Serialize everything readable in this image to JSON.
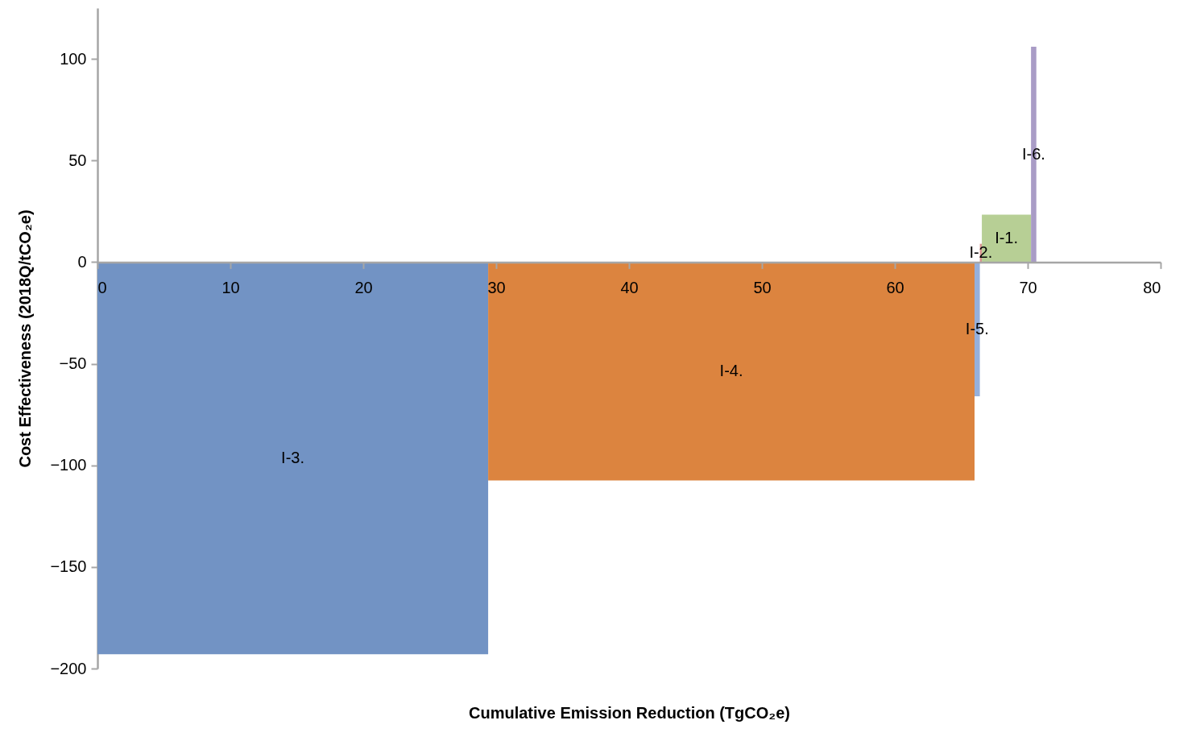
{
  "chart_data": {
    "type": "area",
    "xlabel": "Cumulative Emission Reduction (TgCO₂e)",
    "ylabel": "Cost Effectiveness (2018Q/tCO₂e)",
    "xlim": [
      0,
      80
    ],
    "xticks": [
      0,
      10,
      20,
      30,
      40,
      50,
      60,
      70,
      80
    ],
    "ylim": [
      -200,
      125
    ],
    "yticks": [
      -200,
      -150,
      -100,
      -50,
      0,
      50,
      100
    ],
    "grid": false,
    "series": [
      {
        "name": "I-3.",
        "color": "#7293c4",
        "x": [
          0,
          29.4
        ],
        "values": [
          -193,
          -193
        ]
      },
      {
        "name": "I-4.",
        "color": "#dc843f",
        "x": [
          29.4,
          66.0
        ],
        "values": [
          -107.5,
          -107.5
        ]
      },
      {
        "name": "I-5.",
        "color": "#95b0dc",
        "x": [
          66.0,
          66.4
        ],
        "values": [
          -66,
          -66
        ]
      },
      {
        "name": "I-2.",
        "color": "#d9938f",
        "x": [
          66.4,
          66.55
        ],
        "values": [
          9,
          9
        ]
      },
      {
        "name": "I-1.",
        "color": "#b7cf95",
        "x": [
          66.55,
          70.25
        ],
        "values": [
          23.3,
          23.3
        ]
      },
      {
        "name": "I-6.",
        "color": "#a99cc6",
        "x": [
          70.25,
          70.65
        ],
        "values": [
          106,
          106
        ]
      }
    ]
  }
}
